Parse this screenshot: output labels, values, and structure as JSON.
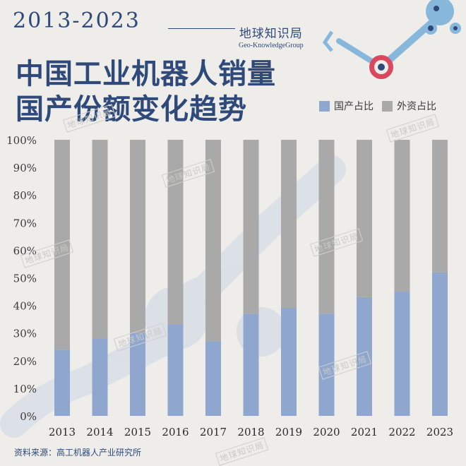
{
  "header": {
    "year_range": "2013-2023",
    "title_line1": "中国工业机器人销量",
    "title_line2": "国产份额变化趋势",
    "brand_cn": "地球知识局",
    "brand_en": "Geo-KnowledgeGroup"
  },
  "watermark_text": "地球知识局",
  "source": "资料来源：高工机器人产业研究所",
  "colors": {
    "domestic": "#8fa6cf",
    "foreign": "#a9a9a9",
    "accent": "#2f4a7a",
    "robot_red": "#d9485f",
    "robot_blue": "#87b8dc"
  },
  "chart_data": {
    "type": "bar",
    "stacked": true,
    "categories": [
      "2013",
      "2014",
      "2015",
      "2016",
      "2017",
      "2018",
      "2019",
      "2020",
      "2021",
      "2022",
      "2023"
    ],
    "series": [
      {
        "name": "国产占比",
        "values": [
          24,
          28,
          30,
          33,
          27,
          37,
          39,
          37,
          43,
          45,
          52
        ]
      },
      {
        "name": "外资占比",
        "values": [
          76,
          72,
          70,
          67,
          73,
          63,
          61,
          63,
          57,
          55,
          48
        ]
      }
    ],
    "ylim": [
      0,
      100
    ],
    "yticks": [
      "0%",
      "10%",
      "20%",
      "30%",
      "40%",
      "50%",
      "60%",
      "70%",
      "80%",
      "90%",
      "100%"
    ],
    "legend_position": "top-right",
    "grid": false
  }
}
